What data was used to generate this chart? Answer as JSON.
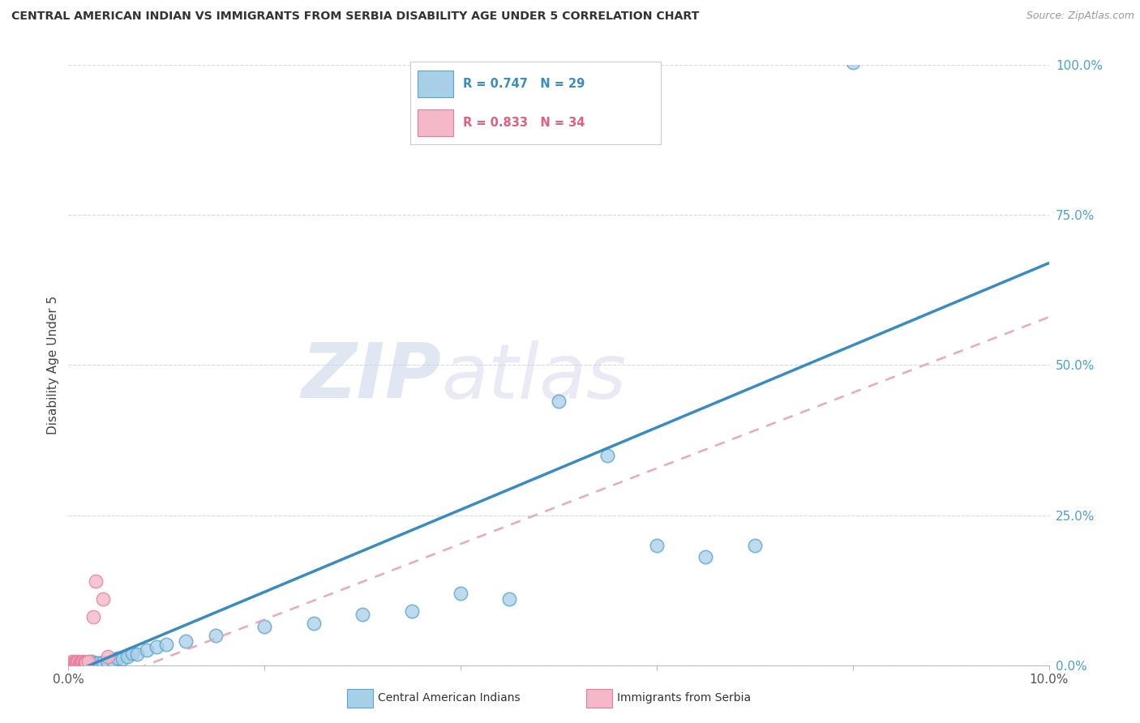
{
  "title": "CENTRAL AMERICAN INDIAN VS IMMIGRANTS FROM SERBIA DISABILITY AGE UNDER 5 CORRELATION CHART",
  "source": "Source: ZipAtlas.com",
  "ylabel": "Disability Age Under 5",
  "ytick_labels": [
    "0.0%",
    "25.0%",
    "50.0%",
    "75.0%",
    "100.0%"
  ],
  "ytick_values": [
    0,
    25,
    50,
    75,
    100
  ],
  "xlim": [
    0,
    10
  ],
  "ylim": [
    0,
    100
  ],
  "legend_label1": "Central American Indians",
  "legend_label2": "Immigrants from Serbia",
  "blue_color": "#a8cfe8",
  "blue_edge_color": "#5ba3d0",
  "pink_fill_color": "#f4b8c8",
  "pink_edge_color": "#e87a9a",
  "blue_line_color": "#3a8bbf",
  "pink_line_color": "#e8a0b0",
  "blue_scatter": [
    [
      0.02,
      0.2
    ],
    [
      0.03,
      0.3
    ],
    [
      0.04,
      0.1
    ],
    [
      0.05,
      0.2
    ],
    [
      0.06,
      0.4
    ],
    [
      0.07,
      0.3
    ],
    [
      0.08,
      0.2
    ],
    [
      0.09,
      0.1
    ],
    [
      0.1,
      0.3
    ],
    [
      0.12,
      0.5
    ],
    [
      0.14,
      0.2
    ],
    [
      0.16,
      0.4
    ],
    [
      0.18,
      0.3
    ],
    [
      0.2,
      0.5
    ],
    [
      0.22,
      0.3
    ],
    [
      0.24,
      0.6
    ],
    [
      0.28,
      0.4
    ],
    [
      0.3,
      0.3
    ],
    [
      0.35,
      0.5
    ],
    [
      0.4,
      0.3
    ],
    [
      0.45,
      0.8
    ],
    [
      0.5,
      1.2
    ],
    [
      0.55,
      1.0
    ],
    [
      0.6,
      1.5
    ],
    [
      0.65,
      2.0
    ],
    [
      0.7,
      1.8
    ],
    [
      0.8,
      2.5
    ],
    [
      0.9,
      3.0
    ],
    [
      1.0,
      3.5
    ],
    [
      1.2,
      4.0
    ],
    [
      1.5,
      5.0
    ],
    [
      2.0,
      6.5
    ],
    [
      2.5,
      7.0
    ],
    [
      3.0,
      8.5
    ],
    [
      3.5,
      9.0
    ],
    [
      4.0,
      12.0
    ],
    [
      4.5,
      11.0
    ],
    [
      5.0,
      44.0
    ],
    [
      5.5,
      35.0
    ],
    [
      6.0,
      20.0
    ],
    [
      6.5,
      18.0
    ],
    [
      7.0,
      20.0
    ],
    [
      8.0,
      100.5
    ]
  ],
  "pink_scatter": [
    [
      0.02,
      0.3
    ],
    [
      0.03,
      0.5
    ],
    [
      0.04,
      0.6
    ],
    [
      0.05,
      0.4
    ],
    [
      0.06,
      0.3
    ],
    [
      0.07,
      0.5
    ],
    [
      0.08,
      0.4
    ],
    [
      0.09,
      0.6
    ],
    [
      0.1,
      0.5
    ],
    [
      0.11,
      0.4
    ],
    [
      0.12,
      0.3
    ],
    [
      0.13,
      0.5
    ],
    [
      0.14,
      0.4
    ],
    [
      0.15,
      0.6
    ],
    [
      0.16,
      0.5
    ],
    [
      0.17,
      0.4
    ],
    [
      0.18,
      0.5
    ],
    [
      0.2,
      0.6
    ],
    [
      0.25,
      8.0
    ],
    [
      0.28,
      14.0
    ],
    [
      0.35,
      11.0
    ],
    [
      0.4,
      1.5
    ]
  ],
  "blue_line": [
    [
      0.0,
      -1.5
    ],
    [
      10.0,
      67.0
    ]
  ],
  "pink_line": [
    [
      0.0,
      -5.0
    ],
    [
      10.0,
      58.0
    ]
  ],
  "grid_color": "#d8d8e8",
  "background_color": "#ffffff",
  "watermark_zip": "ZIP",
  "watermark_atlas": "atlas"
}
